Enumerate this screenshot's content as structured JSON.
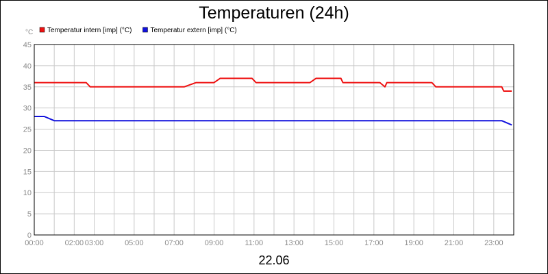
{
  "chart_data": {
    "type": "line",
    "title": "Temperaturen (24h)",
    "y_unit": "°C",
    "date_label": "22.06",
    "ylim": [
      0,
      45
    ],
    "y_ticks": [
      0,
      5,
      10,
      15,
      20,
      25,
      30,
      35,
      40,
      45
    ],
    "x_range_hours": [
      0,
      24
    ],
    "x_ticks": [
      {
        "hour": 0,
        "label": "00:00"
      },
      {
        "hour": 2,
        "label": "02:00"
      },
      {
        "hour": 3,
        "label": "03:00"
      },
      {
        "hour": 5,
        "label": "05:00"
      },
      {
        "hour": 7,
        "label": "07:00"
      },
      {
        "hour": 9,
        "label": "09:00"
      },
      {
        "hour": 11,
        "label": "11:00"
      },
      {
        "hour": 13,
        "label": "13:00"
      },
      {
        "hour": 15,
        "label": "15:00"
      },
      {
        "hour": 17,
        "label": "17:00"
      },
      {
        "hour": 19,
        "label": "19:00"
      },
      {
        "hour": 21,
        "label": "21:00"
      },
      {
        "hour": 23,
        "label": "23:00"
      }
    ],
    "grid": true,
    "legend_position": "top-left",
    "series": [
      {
        "name": "Temperatur intern [imp] (°C)",
        "color": "#ee1111",
        "points": [
          [
            0,
            36
          ],
          [
            2.6,
            36
          ],
          [
            2.8,
            35
          ],
          [
            7.5,
            35
          ],
          [
            8.1,
            36
          ],
          [
            9.0,
            36
          ],
          [
            9.3,
            37
          ],
          [
            10.9,
            37
          ],
          [
            11.1,
            36
          ],
          [
            13.8,
            36
          ],
          [
            14.1,
            37
          ],
          [
            15.35,
            37
          ],
          [
            15.45,
            36
          ],
          [
            17.3,
            36
          ],
          [
            17.55,
            35
          ],
          [
            17.65,
            36
          ],
          [
            19.9,
            36
          ],
          [
            20.1,
            35
          ],
          [
            23.4,
            35
          ],
          [
            23.5,
            34
          ],
          [
            23.9,
            34
          ]
        ]
      },
      {
        "name": "Temperatur extern [imp] (°C)",
        "color": "#1111dd",
        "points": [
          [
            0,
            28
          ],
          [
            0.5,
            28
          ],
          [
            1.0,
            27
          ],
          [
            23.4,
            27
          ],
          [
            23.9,
            26
          ]
        ]
      }
    ]
  }
}
